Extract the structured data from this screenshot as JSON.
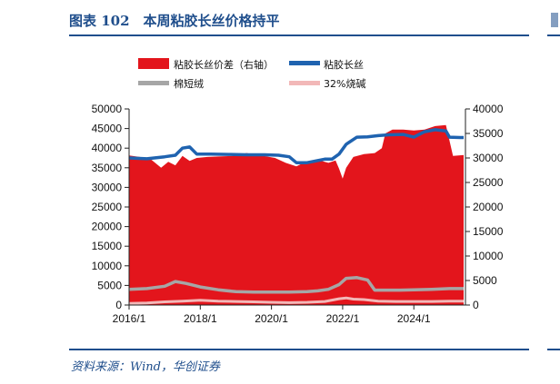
{
  "header": {
    "title": "图表 102　本周粘胶长丝价格持平"
  },
  "footer": {
    "source": "资料来源：Wind，华创证券"
  },
  "colors": {
    "spread": "#e3151c",
    "viscose": "#1f63b0",
    "cotton": "#a6a6a6",
    "caustic": "#f2b8b8",
    "brand": "#1f4e8c"
  },
  "chart_data": {
    "type": "area",
    "title": "",
    "xlabel": "",
    "ylabel": "",
    "x_ticks": [
      "2016/1",
      "2018/1",
      "2020/1",
      "2022/1",
      "2024/1"
    ],
    "left_axis": {
      "min": 0,
      "max": 50000,
      "ticks": [
        0,
        5000,
        10000,
        15000,
        20000,
        25000,
        30000,
        35000,
        40000,
        45000,
        50000
      ]
    },
    "right_axis": {
      "min": 0,
      "max": 40000,
      "ticks": [
        0,
        5000,
        10000,
        15000,
        20000,
        25000,
        30000,
        35000,
        40000
      ]
    },
    "grid": false,
    "legend_position": "top",
    "series": [
      {
        "name": "粘胶长丝价差（右轴）",
        "kind": "area",
        "axis": "right",
        "color_key": "spread",
        "x": [
          2016.0,
          2016.3,
          2016.6,
          2016.9,
          2017.1,
          2017.3,
          2017.5,
          2017.7,
          2017.9,
          2018.2,
          2018.5,
          2018.9,
          2019.3,
          2019.7,
          2020.1,
          2020.4,
          2020.7,
          2020.9,
          2021.1,
          2021.4,
          2021.6,
          2021.8,
          2021.9,
          2022.0,
          2022.1,
          2022.3,
          2022.6,
          2022.9,
          2023.1,
          2023.2,
          2023.4,
          2023.7,
          2024.0,
          2024.3,
          2024.6,
          2024.9,
          2025.1,
          2025.4
        ],
        "y": [
          30500,
          30200,
          29800,
          28000,
          29200,
          28500,
          30400,
          29400,
          30000,
          30200,
          30300,
          30400,
          31000,
          30500,
          30000,
          29000,
          28300,
          29000,
          29200,
          29400,
          29000,
          29500,
          27800,
          25800,
          28000,
          30200,
          30800,
          31000,
          32000,
          35000,
          35800,
          35800,
          35600,
          35800,
          36500,
          36700,
          30400,
          30600
        ]
      },
      {
        "name": "粘胶长丝",
        "kind": "line",
        "axis": "left",
        "color_key": "viscose",
        "x": [
          2016.0,
          2016.5,
          2017.0,
          2017.3,
          2017.5,
          2017.7,
          2017.9,
          2018.3,
          2018.8,
          2019.3,
          2019.8,
          2020.2,
          2020.5,
          2020.7,
          2021.0,
          2021.5,
          2021.7,
          2021.9,
          2022.1,
          2022.4,
          2022.7,
          2023.0,
          2023.3,
          2023.7,
          2024.0,
          2024.3,
          2024.6,
          2024.9,
          2025.0,
          2025.3,
          2025.4
        ],
        "y": [
          37500,
          37300,
          37800,
          38200,
          40000,
          40300,
          38500,
          38500,
          38400,
          38300,
          38300,
          38200,
          37800,
          36300,
          36300,
          37200,
          37200,
          38500,
          41000,
          42800,
          42900,
          43200,
          43400,
          43500,
          42800,
          44200,
          44700,
          44400,
          42800,
          42700,
          42700
        ]
      },
      {
        "name": "棉短绒",
        "kind": "line",
        "axis": "left",
        "color_key": "cotton",
        "x": [
          2016.0,
          2016.5,
          2017.0,
          2017.3,
          2017.6,
          2018.0,
          2018.5,
          2019.0,
          2019.5,
          2020.0,
          2020.5,
          2021.0,
          2021.3,
          2021.6,
          2021.9,
          2022.1,
          2022.4,
          2022.7,
          2022.9,
          2023.2,
          2023.6,
          2024.0,
          2024.5,
          2025.0,
          2025.4
        ],
        "y": [
          4000,
          4200,
          4800,
          6000,
          5500,
          4600,
          3900,
          3400,
          3300,
          3300,
          3300,
          3400,
          3600,
          4000,
          5200,
          6800,
          7000,
          6400,
          3800,
          3800,
          3800,
          3900,
          4000,
          4200,
          4200
        ]
      },
      {
        "name": "32%烧碱",
        "kind": "line",
        "axis": "left",
        "color_key": "caustic",
        "x": [
          2016.0,
          2016.5,
          2017.0,
          2017.5,
          2018.0,
          2018.5,
          2019.0,
          2019.5,
          2020.0,
          2020.5,
          2021.0,
          2021.5,
          2021.9,
          2022.1,
          2022.3,
          2022.6,
          2023.0,
          2023.5,
          2024.0,
          2024.5,
          2025.0,
          2025.4
        ],
        "y": [
          400,
          500,
          800,
          1000,
          1200,
          1000,
          900,
          800,
          700,
          600,
          700,
          900,
          1600,
          1800,
          1500,
          1400,
          1000,
          900,
          900,
          900,
          1000,
          1000
        ]
      }
    ]
  }
}
